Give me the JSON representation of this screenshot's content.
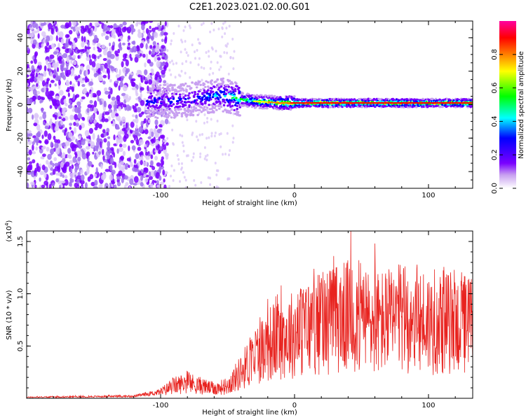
{
  "title": "C2E1.2023.021.02.00.G01",
  "chart_data": [
    {
      "type": "heatmap",
      "xlabel": "Height of straight line (km)",
      "ylabel": "Frequency (Hz)",
      "xlim": [
        -200,
        133
      ],
      "ylim": [
        -50,
        50
      ],
      "x_ticks": [
        -100,
        0,
        100
      ],
      "x_tick_labels": [
        "-100",
        "0",
        "100"
      ],
      "y_ticks": [
        -40,
        -20,
        0,
        20,
        40
      ],
      "y_tick_labels": [
        "-40",
        "-20",
        "0",
        "20",
        "40"
      ],
      "colorbar": {
        "label": "Normalized spectral amplitude",
        "range": [
          0,
          1
        ],
        "ticks": [
          0.0,
          0.2,
          0.4,
          0.6,
          0.8
        ],
        "tick_labels": [
          "0.0",
          "0.2",
          "0.4",
          "0.6",
          "0.8"
        ],
        "colors": [
          "#ffffff",
          "#c8a0f0",
          "#7a00ff",
          "#0000ff",
          "#00ffff",
          "#00ff00",
          "#ffff00",
          "#ff7f00",
          "#ff0000",
          "#ff00a0"
        ]
      },
      "ridge": {
        "x": [
          -90,
          -70,
          -55,
          -45,
          -30,
          -10,
          0,
          10,
          30,
          50,
          80,
          100,
          133
        ],
        "center_freq": [
          2,
          4,
          6,
          4,
          2,
          1,
          1,
          1,
          1,
          1,
          1,
          1,
          1
        ],
        "peak_amplitude": [
          0.35,
          0.4,
          0.45,
          0.55,
          0.65,
          0.8,
          0.85,
          0.85,
          0.9,
          0.85,
          0.9,
          0.85,
          0.85
        ]
      },
      "noise_region_end_x": -95
    },
    {
      "type": "line",
      "xlabel": "Height of straight line (km)",
      "ylabel": "SNR (10 * v/v)",
      "y_multiplier_label": "(x10",
      "y_multiplier_exponent": "4",
      "y_multiplier_close": ")",
      "xlim": [
        -200,
        133
      ],
      "ylim": [
        0,
        16000
      ],
      "x_ticks": [
        -100,
        0,
        100
      ],
      "x_tick_labels": [
        "-100",
        "0",
        "100"
      ],
      "y_ticks": [
        5000,
        10000,
        15000
      ],
      "y_tick_labels": [
        "0.5",
        "1.0",
        "1.5"
      ],
      "series": [
        {
          "color": "#e8231f",
          "envelope_x": [
            -200,
            -120,
            -100,
            -90,
            -80,
            -70,
            -60,
            -50,
            -40,
            -30,
            -20,
            -10,
            0,
            10,
            20,
            30,
            40,
            50,
            60,
            70,
            80,
            90,
            100,
            110,
            120,
            133
          ],
          "envelope_y": [
            100,
            200,
            600,
            1200,
            1500,
            1200,
            900,
            1200,
            2500,
            4000,
            5200,
            5800,
            6200,
            6800,
            7200,
            7600,
            7800,
            7600,
            7200,
            7400,
            7600,
            7600,
            7300,
            7200,
            7200,
            7000
          ],
          "spikes": [
            {
              "x": -20,
              "y": 9500
            },
            {
              "x": -10,
              "y": 10800
            },
            {
              "x": 20,
              "y": 11500
            },
            {
              "x": 30,
              "y": 12000
            },
            {
              "x": 42,
              "y": 16000
            },
            {
              "x": 48,
              "y": 13200
            },
            {
              "x": 60,
              "y": 14800
            },
            {
              "x": 90,
              "y": 9700
            },
            {
              "x": 130,
              "y": 9700
            }
          ]
        }
      ]
    }
  ]
}
